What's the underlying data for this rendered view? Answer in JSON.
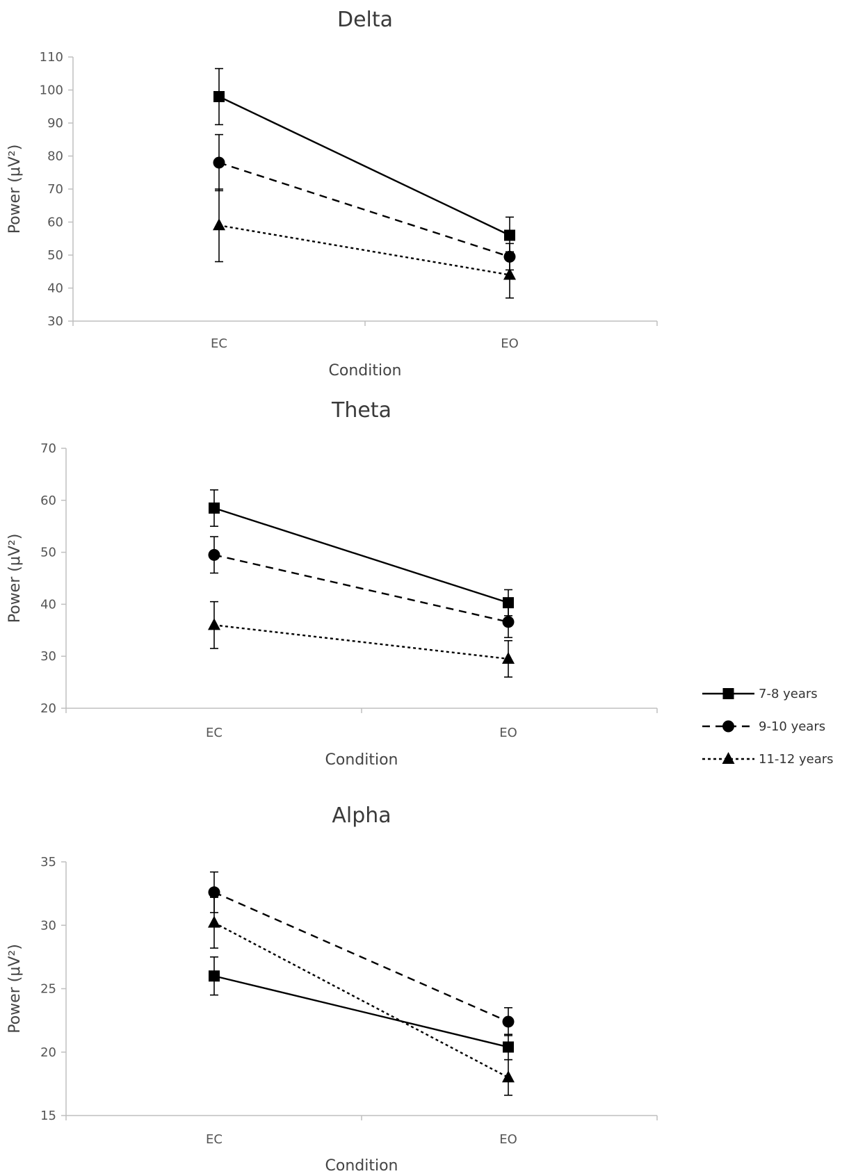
{
  "series_styles": [
    {
      "name": "7-8 years",
      "dash": "solid",
      "marker": "square",
      "color": "#000000"
    },
    {
      "name": "9-10 years",
      "dash": "dashed",
      "marker": "circle",
      "color": "#000000"
    },
    {
      "name": "11-12 years",
      "dash": "dotted",
      "marker": "triangle",
      "color": "#000000"
    }
  ],
  "chart_data": [
    {
      "type": "line",
      "title": "Delta",
      "xlabel": "Condition",
      "ylabel": "Power (μV²)",
      "categories": [
        "EC",
        "EO"
      ],
      "ylim": [
        30,
        110
      ],
      "yticks": [
        30,
        40,
        50,
        60,
        70,
        80,
        90,
        100,
        110
      ],
      "series": [
        {
          "name": "7-8 years",
          "values": [
            98,
            56
          ],
          "errors": [
            8.5,
            5.5
          ]
        },
        {
          "name": "9-10 years",
          "values": [
            78,
            49.5
          ],
          "errors": [
            8.5,
            4
          ]
        },
        {
          "name": "11-12 years",
          "values": [
            59,
            44
          ],
          "errors": [
            11,
            7
          ]
        }
      ]
    },
    {
      "type": "line",
      "title": "Theta",
      "xlabel": "Condition",
      "ylabel": "Power (μV²)",
      "categories": [
        "EC",
        "EO"
      ],
      "ylim": [
        20,
        70
      ],
      "yticks": [
        20,
        30,
        40,
        50,
        60,
        70
      ],
      "series": [
        {
          "name": "7-8 years",
          "values": [
            58.5,
            40.3
          ],
          "errors": [
            3.5,
            2.5
          ]
        },
        {
          "name": "9-10 years",
          "values": [
            49.5,
            36.6
          ],
          "errors": [
            3.5,
            3
          ]
        },
        {
          "name": "11-12 years",
          "values": [
            36,
            29.5
          ],
          "errors": [
            4.5,
            3.5
          ]
        }
      ]
    },
    {
      "type": "line",
      "title": "Alpha",
      "xlabel": "Condition",
      "ylabel": "Power (μV²)",
      "categories": [
        "EC",
        "EO"
      ],
      "ylim": [
        15,
        35
      ],
      "yticks": [
        15,
        20,
        25,
        30,
        35
      ],
      "series": [
        {
          "name": "7-8 years",
          "values": [
            26,
            20.4
          ],
          "errors": [
            1.5,
            1
          ]
        },
        {
          "name": "9-10 years",
          "values": [
            32.6,
            22.4
          ],
          "errors": [
            1.6,
            1.1
          ]
        },
        {
          "name": "11-12 years",
          "values": [
            30.2,
            18
          ],
          "errors": [
            2,
            1.4
          ]
        }
      ]
    }
  ]
}
